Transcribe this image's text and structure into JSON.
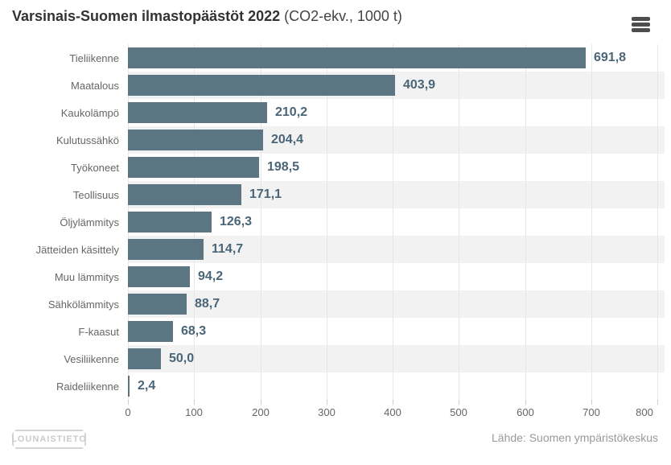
{
  "header": {
    "title_bold": "Varsinais-Suomen ilmastopäästöt 2022",
    "title_normal": "(CO2-ekv., 1000 t)"
  },
  "menu": {
    "icon": "hamburger-icon"
  },
  "footer": {
    "source": "Lähde: Suomen ympäristökeskus",
    "logo": "LOUNAISTIETO"
  },
  "colors": {
    "bar": "#5b7583",
    "value_label": "#4a6578",
    "band": "#f2f2f2",
    "gridline": "#e6e6e6",
    "tick_mark": "#cccccc",
    "axis_text": "#666666",
    "category_text": "#666666",
    "title_text": "#333333",
    "source_text": "#999999",
    "menu_icon": "#4d4d4d",
    "background": "#ffffff"
  },
  "chart_data": {
    "type": "bar",
    "orientation": "horizontal",
    "title": "Varsinais-Suomen ilmastopäästöt 2022 (CO2-ekv., 1000 t)",
    "categories": [
      "Tieliikenne",
      "Maatalous",
      "Kaukolämpö",
      "Kulutussähkö",
      "Työkoneet",
      "Teollisuus",
      "Öljylämmitys",
      "Jätteiden käsittely",
      "Muu lämmitys",
      "Sähkölämmitys",
      "F-kaasut",
      "Vesiliikenne",
      "Raideliikenne"
    ],
    "values": [
      691.8,
      403.9,
      210.2,
      204.4,
      198.5,
      171.1,
      126.3,
      114.7,
      94.2,
      88.7,
      68.3,
      50.0,
      2.4
    ],
    "value_labels": [
      "691,8",
      "403,9",
      "210,2",
      "204,4",
      "198,5",
      "171,1",
      "126,3",
      "114,7",
      "94,2",
      "88,7",
      "68,3",
      "50,0",
      "2,4"
    ],
    "xlabel": "",
    "ylabel": "",
    "xlim": [
      0,
      811
    ],
    "x_ticks": [
      0,
      100,
      200,
      300,
      400,
      500,
      600,
      700,
      800
    ],
    "x_tick_labels": [
      "0",
      "100",
      "200",
      "300",
      "400",
      "500",
      "600",
      "700",
      "800"
    ],
    "grid": true,
    "row_bands_alternating": true,
    "legend": false
  }
}
